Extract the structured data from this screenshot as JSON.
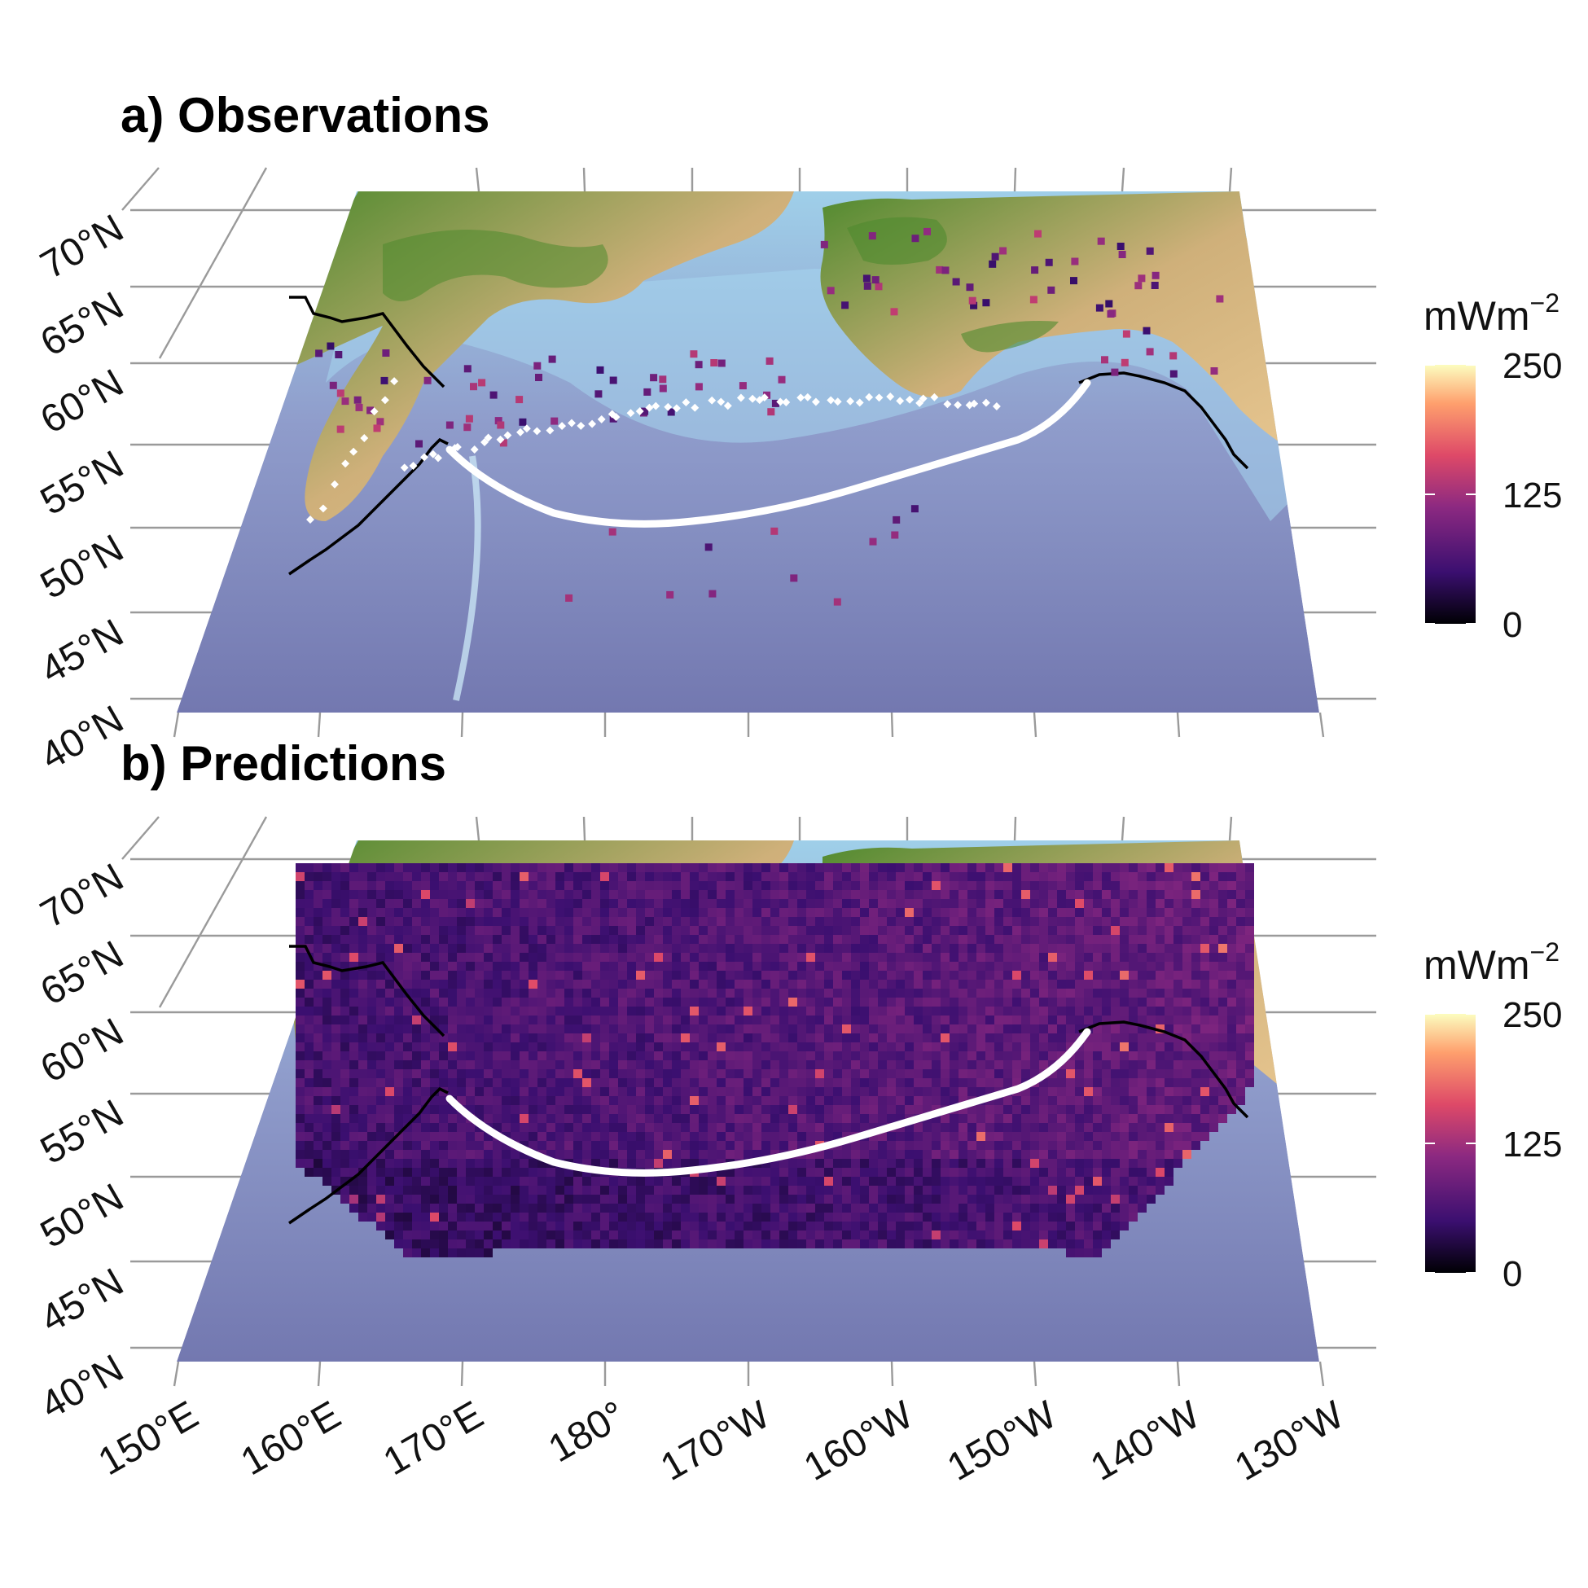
{
  "panels": [
    {
      "id": "a",
      "title": "a) Observations"
    },
    {
      "id": "b",
      "title": "b) Predictions"
    }
  ],
  "lat_ticks": [
    "70°N",
    "65°N",
    "60°N",
    "55°N",
    "50°N",
    "45°N",
    "40°N"
  ],
  "lon_ticks": [
    "150°E",
    "160°E",
    "170°E",
    "180°",
    "170°W",
    "160°W",
    "150°W",
    "140°W",
    "130°W"
  ],
  "colorbar": {
    "title": "mWm",
    "title_superscript": "−2",
    "ticks": [
      "250",
      "125",
      "0"
    ],
    "range": [
      0,
      250
    ],
    "colors": [
      "#000004",
      "#3b0f70",
      "#8c2981",
      "#de4968",
      "#fe9f6d",
      "#fcfdbf"
    ]
  },
  "colors": {
    "ocean_shallow": "#a8d8ef",
    "ocean_deep": "#7b80b4",
    "land_low": "#4e8a2c",
    "land_high": "#e6c48e",
    "trench": "#ffffff",
    "plate_boundary": "#000000"
  },
  "legend_placement": "right"
}
